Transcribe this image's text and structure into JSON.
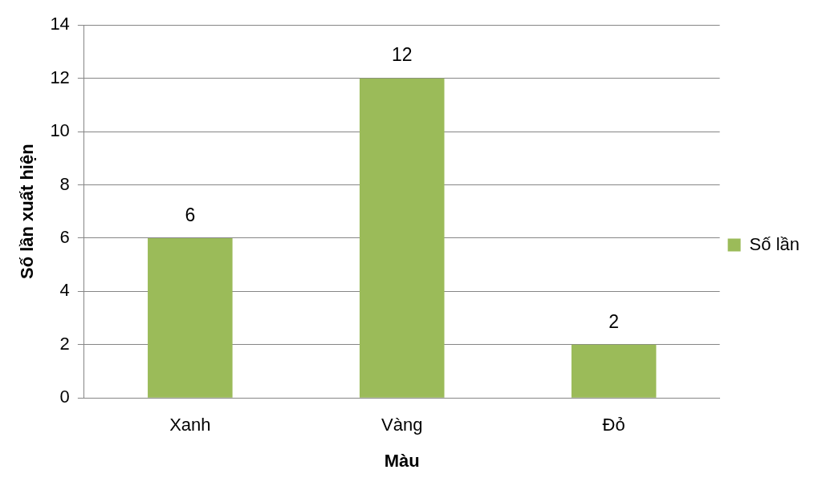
{
  "chart_data": {
    "type": "bar",
    "xlabel": "Màu",
    "ylabel": "Số lần xuất hiện",
    "categories": [
      "Xanh",
      "Vàng",
      "Đỏ"
    ],
    "series": [
      {
        "name": "Số lần",
        "color": "#9bbb59",
        "values": [
          6,
          12,
          2
        ]
      }
    ],
    "ylim": [
      0,
      14
    ],
    "yticks": [
      0,
      2,
      4,
      6,
      8,
      10,
      12,
      14
    ],
    "grid": "y",
    "legend": "right",
    "data_labels": true
  }
}
